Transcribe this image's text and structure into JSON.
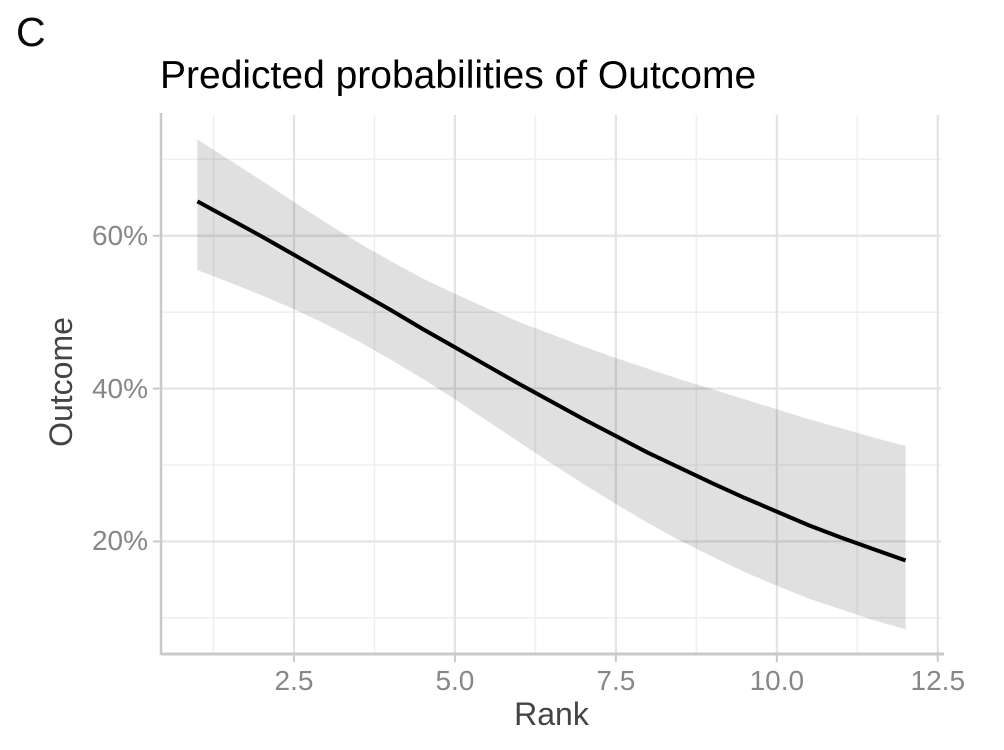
{
  "panel_label": "C",
  "chart_data": {
    "type": "line",
    "title": "Predicted probabilities of Outcome",
    "xlabel": "Rank",
    "ylabel": "Outcome",
    "xlim": [
      0.45,
      12.55
    ],
    "ylim": [
      5.4,
      75.8
    ],
    "grid": "on",
    "legend": "none",
    "x_ticks": [
      {
        "value": 2.5,
        "label": "2.5"
      },
      {
        "value": 5.0,
        "label": "5.0"
      },
      {
        "value": 7.5,
        "label": "7.5"
      },
      {
        "value": 10.0,
        "label": "10.0"
      },
      {
        "value": 12.5,
        "label": "12.5"
      }
    ],
    "x_minor_ticks": [
      1.25,
      3.75,
      6.25,
      8.75,
      11.25
    ],
    "y_ticks": [
      {
        "value": 20,
        "label": "20%"
      },
      {
        "value": 40,
        "label": "40%"
      },
      {
        "value": 60,
        "label": "60%"
      }
    ],
    "y_minor_ticks": [
      10,
      30,
      50,
      70
    ],
    "x": [
      1,
      1.5,
      2,
      2.5,
      3,
      3.5,
      4,
      4.5,
      5,
      5.5,
      6,
      6.5,
      7,
      7.5,
      8,
      8.5,
      9,
      9.5,
      10,
      10.5,
      11,
      11.5,
      12
    ],
    "series": [
      {
        "name": "predicted_probability_pct",
        "values": [
          64.5,
          62.2,
          59.9,
          57.5,
          55.1,
          52.7,
          50.3,
          47.8,
          45.4,
          43.0,
          40.6,
          38.3,
          36.0,
          33.8,
          31.6,
          29.6,
          27.6,
          25.7,
          23.9,
          22.1,
          20.5,
          19.0,
          17.5
        ]
      },
      {
        "name": "ci_upper_pct",
        "values": [
          72.6,
          69.9,
          67.2,
          64.4,
          61.7,
          59.1,
          56.7,
          54.4,
          52.4,
          50.5,
          48.7,
          47.1,
          45.5,
          44.0,
          42.6,
          41.2,
          39.9,
          38.6,
          37.3,
          36.0,
          34.8,
          33.6,
          32.5
        ]
      },
      {
        "name": "ci_lower_pct",
        "values": [
          55.5,
          53.9,
          52.2,
          50.4,
          48.4,
          46.2,
          43.8,
          41.3,
          38.6,
          35.8,
          33.0,
          30.2,
          27.5,
          24.9,
          22.4,
          20.1,
          18.0,
          16.0,
          14.2,
          12.5,
          11.1,
          9.7,
          8.5
        ]
      }
    ],
    "colors": {
      "line": "#000000",
      "ribbon": "rgba(0,0,0,0.12)",
      "grid_major": "#e3e3e3",
      "grid_minor": "#efefef",
      "axis_line": "#c9c9c9",
      "tick_mark": "#c9c9c9",
      "tick_label": "#878787",
      "axis_title": "#444444",
      "title": "#000000"
    }
  }
}
